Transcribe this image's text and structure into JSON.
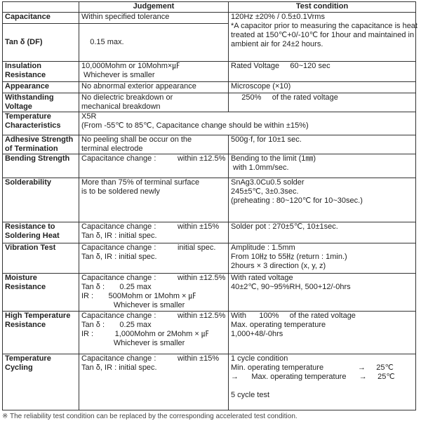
{
  "headers": [
    "",
    "Judgement",
    "Test condition"
  ],
  "rows": [
    {
      "item": [
        "Capacitance"
      ],
      "judgement": [
        "Within specified tolerance"
      ],
      "condition": [
        "120Hz ±20% / 0.5±0.1Vrms",
        "*A capacitor prior to measuring the capacitance is heat",
        "treated at 150℃+0/-10℃ for 1hour and maintained in",
        "ambient air for 24±2 hours."
      ]
    },
    {
      "item": [
        "Tan δ (DF)"
      ],
      "judgement": [
        "    0.15 max."
      ]
    },
    {
      "item": [
        "Insulation",
        "Resistance"
      ],
      "judgement": [
        "10,000Mohm or 10Mohm×㎌",
        " Whichever is smaller"
      ],
      "condition": [
        "Rated Voltage     60~120 sec"
      ]
    },
    {
      "item": [
        "Appearance"
      ],
      "judgement": [
        "No abnormal exterior appearance"
      ],
      "condition": [
        "Microscope (×10)"
      ]
    },
    {
      "item": [
        "Withstanding",
        "Voltage"
      ],
      "judgement": [
        "No dielectric breakdown or",
        "mechanical breakdown"
      ],
      "condition": [
        "     250%     of the rated voltage"
      ]
    },
    {
      "item": [
        "Temperature",
        "Characteristics"
      ],
      "judgement": [
        "X5R",
        "(From -55℃ to 85℃, Capacitance change should be within ±15%)"
      ]
    },
    {
      "item": [
        "Adhesive Strength",
        "of Termination"
      ],
      "judgement": [
        "No peeling shall be occur on the",
        "terminal electrode"
      ],
      "condition": [
        "500g·f, for 10±1 sec."
      ]
    },
    {
      "item": [
        "Bending Strength"
      ],
      "judgement": [
        "Capacitance change :          within ±12.5%"
      ],
      "condition": [
        "Bending to the limit (1㎜)",
        " with 1.0mm/sec."
      ]
    },
    {
      "item": [
        "Solderability"
      ],
      "judgement": [
        "More than 75% of terminal surface",
        "is to be soldered newly"
      ],
      "condition": [
        "SnAg3.0Cu0.5 solder",
        "245±5℃, 3±0.3sec.",
        "(preheating : 80~120℃ for 10~30sec.)"
      ]
    },
    {
      "item": [
        "Resistance to",
        "Soldering Heat"
      ],
      "judgement": [
        "Capacitance change :          within ±15%",
        "Tan δ, IR : initial spec."
      ],
      "condition": [
        "Solder pot : 270±5℃, 10±1sec."
      ]
    },
    {
      "item": [
        "Vibration Test"
      ],
      "judgement": [
        "Capacitance change :          initial spec.",
        "Tan δ, IR : initial spec."
      ],
      "condition": [
        "Amplitude : 1.5mm",
        "From 10㎐ to 55㎐ (return : 1min.)",
        "2hours × 3 direction (x, y, z)"
      ]
    },
    {
      "item": [
        "Moisture",
        "Resistance"
      ],
      "judgement": [
        "Capacitance change :          within ±12.5%",
        "Tan δ :       0.25 max",
        "IR :       500Mohm or 1Mohm × ㎌",
        "               Whichever is smaller"
      ],
      "condition": [
        "With rated voltage",
        "40±2℃, 90~95%RH, 500+12/-0hrs"
      ]
    },
    {
      "item": [
        "High Temperature",
        "Resistance"
      ],
      "judgement": [
        "Capacitance change :          within ±12.5%",
        "Tan δ :       0.25 max",
        "IR :          1,000Mohm or 2Mohm × ㎌",
        "               Whichever is smaller"
      ],
      "condition": [
        "With      100%     of the rated voltage",
        "Max. operating temperature",
        "1,000+48/-0hrs"
      ]
    },
    {
      "item": [
        "Temperature",
        "Cycling"
      ],
      "judgement": [
        "Capacitance change :          within ±15%",
        "Tan δ, IR : initial spec."
      ],
      "condition": [
        "1 cycle condition",
        "Min. operating temperature                →     25℃",
        "→      Max. operating temperature      →     25℃",
        "",
        "5 cycle test"
      ]
    }
  ],
  "footnote": "※ The reliability test condition can be replaced by the corresponding accelerated test condition."
}
